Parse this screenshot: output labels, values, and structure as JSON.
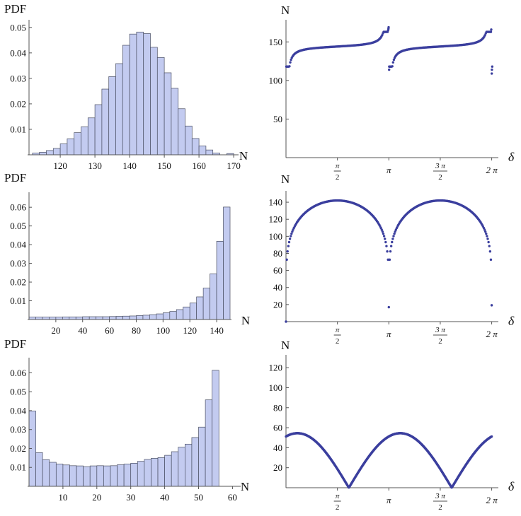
{
  "figure": {
    "panels": [
      {
        "id": "hist-1",
        "chart_data": {
          "type": "bar",
          "ylabel": "PDF",
          "xlabel": "N",
          "xlim": [
            111,
            171
          ],
          "ylim": [
            0,
            0.053
          ],
          "xticks": [
            120,
            130,
            140,
            150,
            160,
            170
          ],
          "yticks": [
            0.01,
            0.02,
            0.03,
            0.04,
            0.05
          ],
          "ytick_labels": [
            "0.01",
            "0.02",
            "0.03",
            "0.04",
            "0.05"
          ],
          "bin_width": 2,
          "bin_start": 112,
          "values": [
            0.0007,
            0.001,
            0.0017,
            0.0025,
            0.0043,
            0.0063,
            0.0087,
            0.011,
            0.0145,
            0.0197,
            0.0258,
            0.0307,
            0.0358,
            0.043,
            0.0474,
            0.0482,
            0.0476,
            0.0422,
            0.0382,
            0.0322,
            0.0261,
            0.0181,
            0.0113,
            0.0064,
            0.0035,
            0.0019,
            0.0007,
            0.0,
            0.0005
          ]
        }
      },
      {
        "id": "scatter-1",
        "chart_data": {
          "type": "scatter",
          "ylabel": "N",
          "xlabel": "δ",
          "xlim": [
            0,
            6.4
          ],
          "ylim": [
            0,
            175
          ],
          "xticks": [
            1.5708,
            3.1416,
            4.7124,
            6.2832
          ],
          "xtick_labels": [
            "π/2",
            "π",
            "3 π/2",
            "2 π"
          ],
          "yticks": [
            50,
            100,
            150
          ],
          "ytick_labels": [
            "50",
            "100",
            "150"
          ],
          "model": {
            "kind": "tangent-branches",
            "period": 3.1416,
            "center": 144,
            "amplitude": 6.0,
            "x_scale": 2.38
          },
          "extra_points": [
            {
              "x": 3.12,
              "y": 165
            },
            {
              "x": 3.13,
              "y": 167
            },
            {
              "x": 3.135,
              "y": 169
            },
            {
              "x": 3.15,
              "y": 114
            },
            {
              "x": 3.16,
              "y": 118
            },
            {
              "x": 6.26,
              "y": 163
            },
            {
              "x": 6.27,
              "y": 166
            },
            {
              "x": 6.285,
              "y": 109
            },
            {
              "x": 6.29,
              "y": 114
            },
            {
              "x": 6.3,
              "y": 118
            }
          ]
        }
      },
      {
        "id": "hist-2",
        "chart_data": {
          "type": "bar",
          "ylabel": "PDF",
          "xlabel": "N",
          "xlim": [
            0,
            150
          ],
          "ylim": [
            0,
            0.068
          ],
          "xticks": [
            20,
            40,
            60,
            80,
            100,
            120,
            140
          ],
          "yticks": [
            0.01,
            0.02,
            0.03,
            0.04,
            0.05,
            0.06
          ],
          "ytick_labels": [
            "0.01",
            "0.02",
            "0.03",
            "0.04",
            "0.05",
            "0.06"
          ],
          "bin_width": 5,
          "bin_start": 0,
          "values": [
            0.0013,
            0.0013,
            0.0013,
            0.0013,
            0.0013,
            0.0014,
            0.0014,
            0.0014,
            0.0015,
            0.0015,
            0.0015,
            0.0015,
            0.0016,
            0.0017,
            0.0018,
            0.0019,
            0.0021,
            0.0023,
            0.0026,
            0.003,
            0.0036,
            0.0043,
            0.0053,
            0.0067,
            0.0088,
            0.0121,
            0.0168,
            0.0244,
            0.0418,
            0.0601
          ]
        }
      },
      {
        "id": "scatter-2",
        "chart_data": {
          "type": "scatter",
          "ylabel": "N",
          "xlabel": "δ",
          "xlim": [
            0,
            6.4
          ],
          "ylim": [
            0,
            150
          ],
          "xticks": [
            1.5708,
            3.1416,
            4.7124,
            6.2832
          ],
          "xtick_labels": [
            "π/2",
            "π",
            "3 π/2",
            "2 π"
          ],
          "yticks": [
            20,
            40,
            60,
            80,
            100,
            120,
            140
          ],
          "ytick_labels": [
            "20",
            "40",
            "60",
            "80",
            "100",
            "120",
            "140"
          ],
          "model": {
            "kind": "sqrt-sine",
            "period": 3.1416,
            "max": 142,
            "exponent": 0.18,
            "n_points": 260
          }
        }
      },
      {
        "id": "hist-3",
        "chart_data": {
          "type": "bar",
          "ylabel": "PDF",
          "xlabel": "N",
          "xlim": [
            0,
            62
          ],
          "ylim": [
            0,
            0.068
          ],
          "xticks": [
            10,
            20,
            30,
            40,
            50,
            60
          ],
          "yticks": [
            0.01,
            0.02,
            0.03,
            0.04,
            0.05,
            0.06
          ],
          "ytick_labels": [
            "0.01",
            "0.02",
            "0.03",
            "0.04",
            "0.05",
            "0.06"
          ],
          "bin_width": 2,
          "bin_start": 0,
          "values": [
            0.0398,
            0.0178,
            0.0141,
            0.0127,
            0.0118,
            0.0113,
            0.0109,
            0.0108,
            0.0104,
            0.0108,
            0.0109,
            0.0108,
            0.0109,
            0.0114,
            0.0118,
            0.0122,
            0.0132,
            0.0142,
            0.0148,
            0.0152,
            0.0164,
            0.0183,
            0.0207,
            0.0223,
            0.0258,
            0.0313,
            0.0457,
            0.0613
          ]
        }
      },
      {
        "id": "scatter-3",
        "chart_data": {
          "type": "scatter",
          "ylabel": "N",
          "xlabel": "δ",
          "xlim": [
            0,
            6.4
          ],
          "ylim": [
            0,
            130
          ],
          "xticks": [
            1.5708,
            3.1416,
            4.7124,
            6.2832
          ],
          "xtick_labels": [
            "π/2",
            "π",
            "3 π/2",
            "2 π"
          ],
          "yticks": [
            20,
            40,
            60,
            80,
            100,
            120
          ],
          "ytick_labels": [
            "20",
            "40",
            "60",
            "80",
            "100",
            "120"
          ],
          "model": {
            "kind": "abs-cosine",
            "period": 3.1416,
            "max": 54.5,
            "phase": 0.35,
            "n_points": 600
          }
        }
      }
    ]
  }
}
